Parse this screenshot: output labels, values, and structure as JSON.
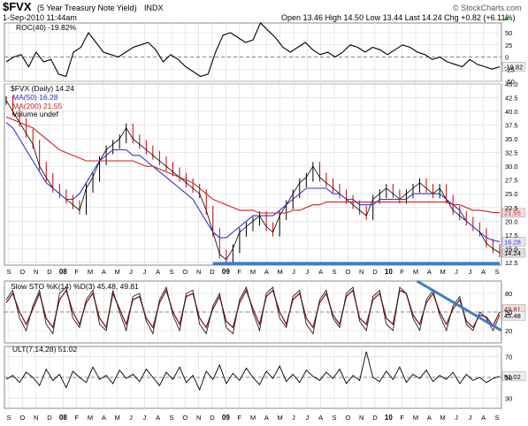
{
  "header": {
    "symbol": "$FVX",
    "name": "(5 Year Treasury Note Yield)",
    "exchange": "INDX",
    "date": "1-Sep-2010 11:44am",
    "quote": "Open 13.46  High 14.50  Low 13.44  Last 14.24  Chg +0.82 (+6.11%)",
    "quote_arrow": "▲",
    "watermark": "© StockCharts.com"
  },
  "chart_data": [
    {
      "type": "line",
      "panel": "ROC",
      "label": "ROC(40) -19.82%",
      "ylim": [
        -50,
        70
      ],
      "yticks": [
        "50",
        "25",
        "0",
        "-25",
        "-50"
      ],
      "last_value": "-19.82",
      "series": [
        {
          "name": "ROC(40)",
          "values": [
            -10,
            0,
            5,
            -20,
            10,
            -10,
            -5,
            -35,
            -40,
            10,
            20,
            50,
            30,
            10,
            5,
            0,
            10,
            20,
            25,
            30,
            15,
            -10,
            5,
            -5,
            -20,
            -30,
            -40,
            -35,
            10,
            45,
            50,
            40,
            30,
            35,
            70,
            55,
            40,
            20,
            10,
            20,
            30,
            15,
            5,
            10,
            0,
            10,
            25,
            20,
            10,
            20,
            15,
            5,
            15,
            25,
            20,
            10,
            5,
            -5,
            0,
            -10,
            -15,
            -20,
            -5,
            -15,
            -20,
            -25,
            -20
          ]
        }
      ]
    },
    {
      "type": "candlestick",
      "panel": "price",
      "title": "$FVX (Daily) 14.24",
      "legend": [
        "MA(50) 16.28",
        "MA(200) 21.55",
        "Volume undef"
      ],
      "ylim": [
        12.0,
        45.0
      ],
      "yticks": [
        "45.0",
        "42.5",
        "40.0",
        "37.5",
        "35.0",
        "32.5",
        "30.0",
        "27.5",
        "25.0",
        "22.5",
        "20.0",
        "17.5",
        "15.0",
        "12.5"
      ],
      "last_values": {
        "price": "14.24",
        "ma50": "16.28",
        "ma200": "21.55"
      },
      "series": [
        {
          "name": "$FVX",
          "values": [
            42,
            40,
            38,
            36,
            34,
            30,
            28,
            26,
            25,
            24,
            23,
            22,
            26,
            28,
            31,
            33,
            34,
            35,
            37,
            35,
            34,
            33,
            32,
            31,
            30,
            29,
            28,
            27,
            26,
            25,
            22,
            18,
            14,
            13,
            15,
            18,
            19,
            20,
            21,
            19,
            18,
            21,
            23,
            25,
            27,
            28,
            30,
            28,
            27,
            26,
            25,
            24,
            23,
            22,
            21,
            24,
            25,
            26,
            25,
            24,
            25,
            26,
            27,
            26,
            25,
            26,
            24,
            22,
            21,
            20,
            19,
            18,
            16,
            15,
            14.24
          ]
        },
        {
          "name": "MA(50)",
          "values": [
            38,
            37,
            35,
            33,
            31,
            29,
            27,
            26,
            25,
            24,
            24,
            25,
            27,
            29,
            31,
            32,
            33,
            33,
            33,
            32,
            32,
            31,
            30,
            29,
            28,
            27,
            26,
            25,
            24,
            22,
            20,
            18,
            17,
            17,
            18,
            19,
            20,
            21,
            21,
            21,
            21,
            22,
            23,
            24,
            25,
            26,
            26,
            26,
            26,
            25,
            25,
            24,
            24,
            23,
            23,
            23,
            24,
            24,
            24,
            24,
            24,
            25,
            25,
            25,
            25,
            25,
            24,
            23,
            22,
            20,
            19,
            18,
            17,
            16.5,
            16.28
          ]
        },
        {
          "name": "MA(200)",
          "values": [
            39,
            38.5,
            38,
            37.5,
            37,
            36,
            35,
            34,
            33,
            32.5,
            32,
            31.5,
            31,
            31,
            31,
            31,
            31,
            31,
            31,
            31,
            30.5,
            30,
            30,
            29.5,
            29,
            28.5,
            28,
            27.5,
            27,
            26,
            25,
            24,
            23.5,
            23,
            22.5,
            22,
            22,
            22,
            21.5,
            21.5,
            21.5,
            21.5,
            21.5,
            22,
            22,
            22.5,
            23,
            23,
            23.5,
            23.5,
            23.5,
            23.5,
            23.5,
            23.5,
            23.5,
            23.5,
            23.5,
            23.5,
            23.5,
            23.5,
            23.5,
            23.5,
            23.5,
            23.5,
            23.5,
            23.5,
            23.5,
            23,
            23,
            22.5,
            22,
            22,
            21.8,
            21.6,
            21.55
          ]
        }
      ],
      "support_line": {
        "value": 12.3
      }
    },
    {
      "type": "line",
      "panel": "stochastic",
      "label": "Slow STO %K(14) %D(3) 45.48, 49.81",
      "ylim": [
        0,
        100
      ],
      "yticks": [
        "80",
        "50",
        "20"
      ],
      "last_values": [
        "49.81",
        "45.48"
      ],
      "series": [
        {
          "name": "%K",
          "values": [
            70,
            85,
            40,
            20,
            60,
            85,
            30,
            15,
            80,
            90,
            40,
            25,
            70,
            85,
            30,
            20,
            85,
            50,
            20,
            75,
            80,
            35,
            15,
            70,
            90,
            45,
            20,
            80,
            85,
            30,
            15,
            60,
            80,
            25,
            15,
            70,
            90,
            50,
            20,
            80,
            90,
            40,
            25,
            75,
            85,
            30,
            15,
            70,
            85,
            40,
            25,
            80,
            90,
            35,
            20,
            75,
            85,
            30,
            20,
            90,
            80,
            40,
            20,
            70,
            85,
            45,
            20,
            60,
            75,
            30,
            20,
            50,
            40,
            20,
            45
          ]
        },
        {
          "name": "%D",
          "values": [
            65,
            80,
            50,
            30,
            55,
            80,
            40,
            25,
            70,
            85,
            50,
            30,
            65,
            80,
            40,
            25,
            80,
            55,
            30,
            70,
            75,
            40,
            25,
            65,
            85,
            50,
            30,
            75,
            80,
            40,
            25,
            55,
            75,
            35,
            25,
            65,
            85,
            55,
            30,
            75,
            85,
            50,
            30,
            70,
            80,
            40,
            25,
            65,
            80,
            45,
            30,
            75,
            85,
            40,
            30,
            70,
            80,
            40,
            30,
            85,
            80,
            45,
            30,
            65,
            80,
            50,
            30,
            55,
            70,
            35,
            25,
            45,
            42,
            28,
            50
          ]
        }
      ],
      "trendline": {
        "from": [
          0.83,
          100
        ],
        "to": [
          1.0,
          20
        ]
      }
    },
    {
      "type": "line",
      "panel": "ultimate",
      "label": "ULT(7,14,28) 51.02",
      "ylim": [
        20,
        80
      ],
      "yticks": [
        "70",
        "50",
        "30"
      ],
      "last_value": "51.02",
      "series": [
        {
          "name": "ULT",
          "values": [
            48,
            52,
            45,
            55,
            50,
            42,
            58,
            47,
            53,
            40,
            56,
            50,
            45,
            60,
            48,
            52,
            44,
            57,
            49,
            53,
            46,
            58,
            50,
            42,
            55,
            48,
            60,
            45,
            52,
            38,
            56,
            48,
            62,
            44,
            54,
            47,
            59,
            50,
            43,
            56,
            49,
            61,
            46,
            53,
            45,
            57,
            51,
            47,
            55,
            49,
            58,
            44,
            52,
            47,
            75,
            50,
            46,
            56,
            48,
            60,
            45,
            53,
            49,
            57,
            46,
            52,
            48,
            55,
            44,
            53,
            47,
            50,
            45,
            49,
            51
          ]
        }
      ]
    }
  ],
  "x_axis": {
    "labels": [
      "S",
      "O",
      "N",
      "D",
      "08",
      "F",
      "M",
      "A",
      "M",
      "J",
      "J",
      "A",
      "S",
      "O",
      "N",
      "D",
      "09",
      "F",
      "M",
      "A",
      "M",
      "J",
      "J",
      "A",
      "S",
      "O",
      "N",
      "D",
      "10",
      "F",
      "M",
      "A",
      "M",
      "J",
      "J",
      "A",
      "S"
    ],
    "year_labels": [
      "08",
      "09",
      "10"
    ]
  },
  "colors": {
    "price": "#000000",
    "down_candle": "#cc0000",
    "ma50": "#3333cc",
    "ma200": "#cc2222",
    "support": "#3d7cc9",
    "stoch_k": "#222222",
    "stoch_d": "#8b1a1a",
    "grid": "#d9d9d9"
  }
}
